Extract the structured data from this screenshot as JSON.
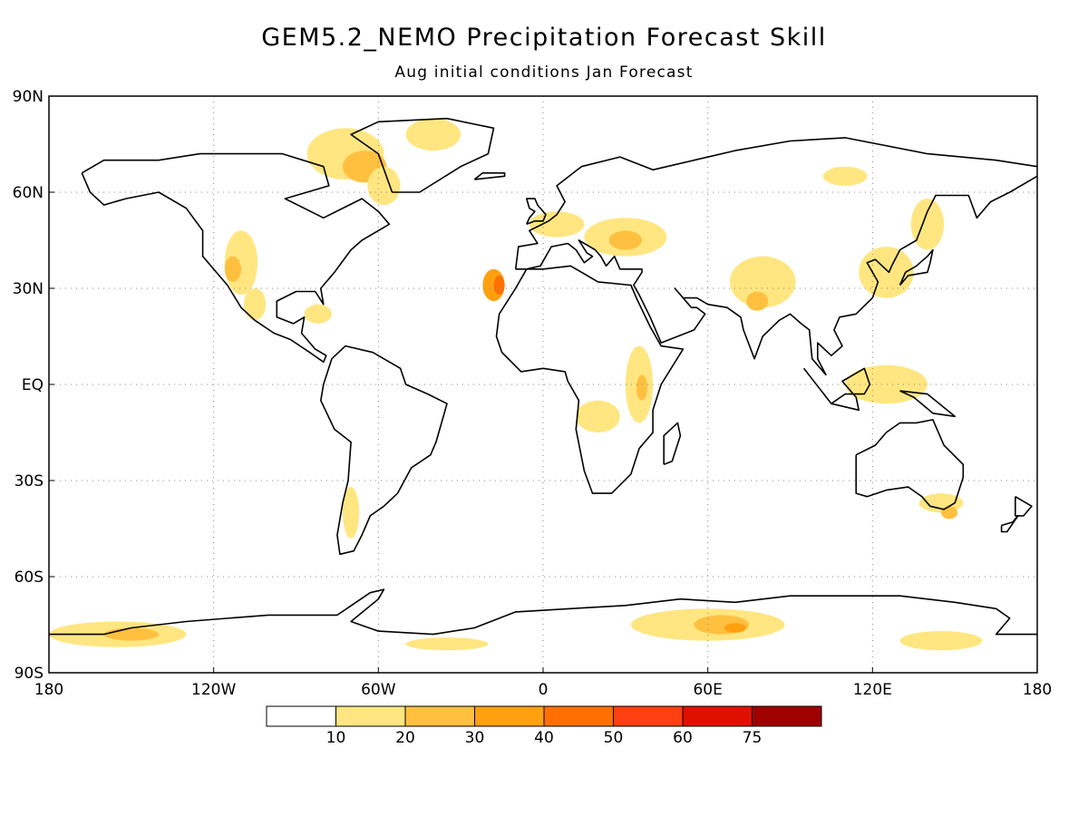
{
  "title": "GEM5.2_NEMO Precipitation Forecast Skill",
  "subtitle": "Aug initial conditions   Jan Forecast",
  "map": {
    "projection": "equirectangular",
    "lon_range": [
      -180,
      180
    ],
    "lat_range": [
      -90,
      90
    ],
    "grid_lines": "dotted",
    "y_ticks": [
      {
        "lat": 90,
        "label": "90N"
      },
      {
        "lat": 60,
        "label": "60N"
      },
      {
        "lat": 30,
        "label": "30N"
      },
      {
        "lat": 0,
        "label": "EQ"
      },
      {
        "lat": -30,
        "label": "30S"
      },
      {
        "lat": -60,
        "label": "60S"
      },
      {
        "lat": -90,
        "label": "90S"
      }
    ],
    "x_ticks": [
      {
        "lon": -180,
        "label": "180"
      },
      {
        "lon": -120,
        "label": "120W"
      },
      {
        "lon": -60,
        "label": "60W"
      },
      {
        "lon": 0,
        "label": "0"
      },
      {
        "lon": 60,
        "label": "60E"
      },
      {
        "lon": 120,
        "label": "120E"
      },
      {
        "lon": 180,
        "label": "180"
      }
    ]
  },
  "colorbar": {
    "bins": [
      {
        "color": "#ffffff"
      },
      {
        "color": "#ffe680"
      },
      {
        "color": "#ffc040"
      },
      {
        "color": "#ffa010"
      },
      {
        "color": "#ff7000"
      },
      {
        "color": "#ff4010"
      },
      {
        "color": "#e01000"
      },
      {
        "color": "#a00000"
      }
    ],
    "labels": [
      "10",
      "20",
      "30",
      "40",
      "50",
      "60",
      "75"
    ]
  },
  "chart_data": {
    "type": "heatmap",
    "title": "GEM5.2_NEMO Precipitation Forecast Skill",
    "subtitle": "Aug initial conditions   Jan Forecast",
    "x_range": [
      -180,
      180
    ],
    "y_range": [
      -90,
      90
    ],
    "levels": [
      10,
      20,
      30,
      40,
      50,
      60,
      75
    ],
    "regions": [
      {
        "lon": -72,
        "lat": 72,
        "rlon": 14,
        "rlat": 8,
        "level": 1
      },
      {
        "lon": -65,
        "lat": 68,
        "rlon": 8,
        "rlat": 5,
        "level": 2
      },
      {
        "lon": -40,
        "lat": 78,
        "rlon": 10,
        "rlat": 5,
        "level": 1
      },
      {
        "lon": -58,
        "lat": 62,
        "rlon": 6,
        "rlat": 6,
        "level": 1
      },
      {
        "lon": -110,
        "lat": 38,
        "rlon": 6,
        "rlat": 10,
        "level": 1
      },
      {
        "lon": -113,
        "lat": 36,
        "rlon": 3,
        "rlat": 4,
        "level": 2
      },
      {
        "lon": -105,
        "lat": 25,
        "rlon": 4,
        "rlat": 5,
        "level": 1
      },
      {
        "lon": -82,
        "lat": 22,
        "rlon": 5,
        "rlat": 3,
        "level": 1
      },
      {
        "lon": -18,
        "lat": 31,
        "rlon": 4,
        "rlat": 5,
        "level": 3
      },
      {
        "lon": -16,
        "lat": 31,
        "rlon": 2,
        "rlat": 3,
        "level": 4
      },
      {
        "lon": 5,
        "lat": 50,
        "rlon": 10,
        "rlat": 4,
        "level": 1
      },
      {
        "lon": 30,
        "lat": 46,
        "rlon": 15,
        "rlat": 6,
        "level": 1
      },
      {
        "lon": 30,
        "lat": 45,
        "rlon": 6,
        "rlat": 3,
        "level": 2
      },
      {
        "lon": 35,
        "lat": 0,
        "rlon": 5,
        "rlat": 12,
        "level": 1
      },
      {
        "lon": 36,
        "lat": -1,
        "rlon": 2,
        "rlat": 4,
        "level": 2
      },
      {
        "lon": 20,
        "lat": -10,
        "rlon": 8,
        "rlat": 5,
        "level": 1
      },
      {
        "lon": 80,
        "lat": 32,
        "rlon": 12,
        "rlat": 8,
        "level": 1
      },
      {
        "lon": 78,
        "lat": 26,
        "rlon": 4,
        "rlat": 3,
        "level": 2
      },
      {
        "lon": 125,
        "lat": 35,
        "rlon": 10,
        "rlat": 8,
        "level": 1
      },
      {
        "lon": 140,
        "lat": 50,
        "rlon": 6,
        "rlat": 8,
        "level": 1
      },
      {
        "lon": 110,
        "lat": 65,
        "rlon": 8,
        "rlat": 3,
        "level": 1
      },
      {
        "lon": 125,
        "lat": 0,
        "rlon": 15,
        "rlat": 6,
        "level": 1
      },
      {
        "lon": 145,
        "lat": -37,
        "rlon": 8,
        "rlat": 3,
        "level": 1
      },
      {
        "lon": 148,
        "lat": -40,
        "rlon": 3,
        "rlat": 2,
        "level": 2
      },
      {
        "lon": -70,
        "lat": -40,
        "rlon": 3,
        "rlat": 8,
        "level": 1
      },
      {
        "lon": -155,
        "lat": -78,
        "rlon": 25,
        "rlat": 4,
        "level": 1
      },
      {
        "lon": -150,
        "lat": -78,
        "rlon": 10,
        "rlat": 2,
        "level": 2
      },
      {
        "lon": -35,
        "lat": -81,
        "rlon": 15,
        "rlat": 2,
        "level": 1
      },
      {
        "lon": 60,
        "lat": -75,
        "rlon": 28,
        "rlat": 5,
        "level": 1
      },
      {
        "lon": 65,
        "lat": -75,
        "rlon": 10,
        "rlat": 3,
        "level": 2
      },
      {
        "lon": 70,
        "lat": -76,
        "rlon": 4,
        "rlat": 1.5,
        "level": 3
      },
      {
        "lon": 145,
        "lat": -80,
        "rlon": 15,
        "rlat": 3,
        "level": 1
      }
    ]
  }
}
